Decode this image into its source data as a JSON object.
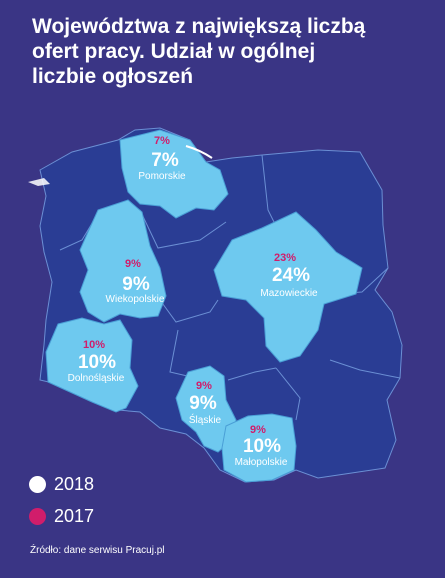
{
  "title_lines": [
    "Województwa z największą liczbą",
    "ofert pracy. Udział w ogólnej",
    "liczbie ogłoszeń"
  ],
  "colors": {
    "background": "#3a3585",
    "country_dark": "#2a3d94",
    "region_highlight": "#6ec9ef",
    "border": "#6b8fd4",
    "year_2018": "#ffffff",
    "year_2017": "#d11d6b"
  },
  "regions": [
    {
      "name": "Pomorskie",
      "pct_2017": "7%",
      "pct_2018": "7%"
    },
    {
      "name": "Wiekopolskie",
      "pct_2017": "9%",
      "pct_2018": "9%"
    },
    {
      "name": "Mazowieckie",
      "pct_2017": "23%",
      "pct_2018": "24%"
    },
    {
      "name": "Dolnośląskie",
      "pct_2017": "10%",
      "pct_2018": "10%"
    },
    {
      "name": "Śląskie",
      "pct_2017": "9%",
      "pct_2018": "9%"
    },
    {
      "name": "Małopolskie",
      "pct_2017": "9%",
      "pct_2018": "10%"
    }
  ],
  "legend": [
    {
      "label": "2018",
      "color": "#ffffff"
    },
    {
      "label": "2017",
      "color": "#d11d6b"
    }
  ],
  "source": "Źródło: dane serwisu Pracuj.pl"
}
